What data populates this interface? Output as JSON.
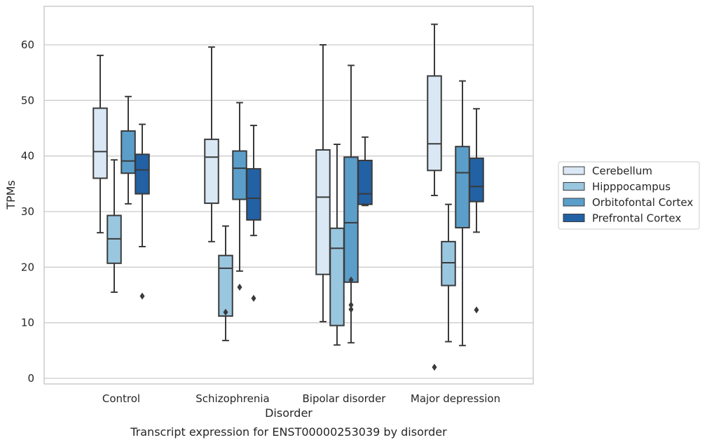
{
  "chart_data": {
    "type": "box",
    "title": "",
    "caption": "Transcript expression for ENST00000253039 by disorder",
    "xlabel": "Disorder",
    "ylabel": "TPMs",
    "ylim": [
      -1,
      67
    ],
    "yticks": [
      0,
      10,
      20,
      30,
      40,
      50,
      60
    ],
    "grid": "horizontal",
    "legend_position": "right",
    "categories": [
      "Control",
      "Schizophrenia",
      "Bipolar disorder",
      "Major depression"
    ],
    "series": [
      {
        "name": "Cerebellum",
        "color": "#dae8f5",
        "boxes": [
          {
            "whisker_low": 26.2,
            "q1": 36.0,
            "median": 40.8,
            "q3": 48.6,
            "whisker_high": 58.1,
            "outliers": []
          },
          {
            "whisker_low": 24.6,
            "q1": 31.5,
            "median": 39.8,
            "q3": 43.0,
            "whisker_high": 59.6,
            "outliers": []
          },
          {
            "whisker_low": 10.2,
            "q1": 18.7,
            "median": 32.6,
            "q3": 41.1,
            "whisker_high": 60.0,
            "outliers": []
          },
          {
            "whisker_low": 32.9,
            "q1": 37.4,
            "median": 42.2,
            "q3": 54.4,
            "whisker_high": 63.7,
            "outliers": [
              2.0
            ]
          }
        ]
      },
      {
        "name": "Hipppocampus",
        "color": "#9ac7e0",
        "boxes": [
          {
            "whisker_low": 15.5,
            "q1": 20.7,
            "median": 25.1,
            "q3": 29.3,
            "whisker_high": 39.3,
            "outliers": []
          },
          {
            "whisker_low": 6.8,
            "q1": 11.2,
            "median": 19.8,
            "q3": 22.1,
            "whisker_high": 27.4,
            "outliers": [
              11.9
            ]
          },
          {
            "whisker_low": 6.0,
            "q1": 9.5,
            "median": 23.4,
            "q3": 27.0,
            "whisker_high": 42.1,
            "outliers": []
          },
          {
            "whisker_low": 6.6,
            "q1": 16.7,
            "median": 20.8,
            "q3": 24.6,
            "whisker_high": 31.3,
            "outliers": []
          }
        ]
      },
      {
        "name": "Orbitofontal Cortex",
        "color": "#5b9ec9",
        "boxes": [
          {
            "whisker_low": 31.4,
            "q1": 36.9,
            "median": 39.1,
            "q3": 44.5,
            "whisker_high": 50.7,
            "outliers": []
          },
          {
            "whisker_low": 19.3,
            "q1": 32.2,
            "median": 37.8,
            "q3": 40.9,
            "whisker_high": 49.6,
            "outliers": [
              16.4
            ]
          },
          {
            "whisker_low": 6.4,
            "q1": 17.3,
            "median": 28.0,
            "q3": 39.8,
            "whisker_high": 56.3,
            "outliers": [
              17.7,
              13.2,
              12.4
            ]
          },
          {
            "whisker_low": 5.9,
            "q1": 27.1,
            "median": 37.0,
            "q3": 41.7,
            "whisker_high": 53.5,
            "outliers": []
          }
        ]
      },
      {
        "name": "Prefrontal Cortex",
        "color": "#2361a5",
        "boxes": [
          {
            "whisker_low": 23.7,
            "q1": 33.2,
            "median": 37.5,
            "q3": 40.3,
            "whisker_high": 45.7,
            "outliers": [
              14.8
            ]
          },
          {
            "whisker_low": 25.7,
            "q1": 28.5,
            "median": 32.4,
            "q3": 37.7,
            "whisker_high": 45.5,
            "outliers": [
              14.4
            ]
          },
          {
            "whisker_low": 31.1,
            "q1": 31.3,
            "median": 33.2,
            "q3": 39.2,
            "whisker_high": 43.4,
            "outliers": []
          },
          {
            "whisker_low": 26.3,
            "q1": 31.8,
            "median": 34.5,
            "q3": 39.6,
            "whisker_high": 48.5,
            "outliers": [
              12.3
            ]
          }
        ]
      }
    ]
  }
}
